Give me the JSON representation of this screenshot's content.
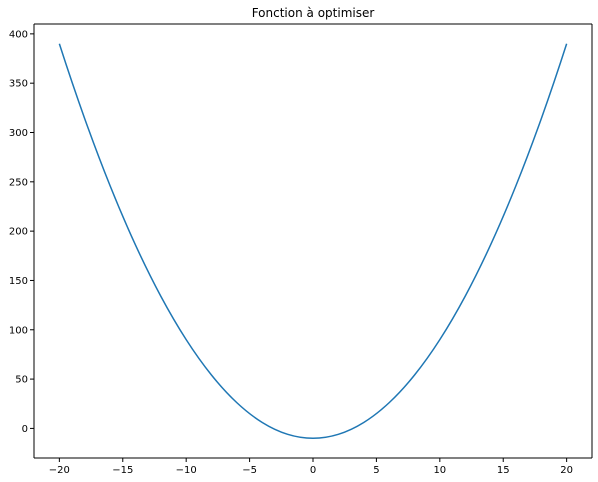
{
  "chart_data": {
    "type": "line",
    "title": "Fonction à optimiser",
    "xlabel": "",
    "ylabel": "",
    "xlim": [
      -22,
      22
    ],
    "ylim": [
      -30,
      410
    ],
    "x_ticks": [
      -20,
      -15,
      -10,
      -5,
      0,
      5,
      10,
      15,
      20
    ],
    "y_ticks": [
      0,
      50,
      100,
      150,
      200,
      250,
      300,
      350,
      400
    ],
    "grid": false,
    "series": [
      {
        "color": "#1f77b4",
        "x": [
          -20,
          -18,
          -16,
          -14,
          -12,
          -10,
          -8,
          -6,
          -4,
          -2,
          0,
          2,
          4,
          6,
          8,
          10,
          12,
          14,
          16,
          18,
          20
        ],
        "y": [
          390,
          314,
          246,
          186,
          134,
          90,
          54,
          26,
          6,
          -6,
          -10,
          -6,
          6,
          26,
          54,
          90,
          134,
          186,
          246,
          314,
          390
        ]
      }
    ]
  }
}
